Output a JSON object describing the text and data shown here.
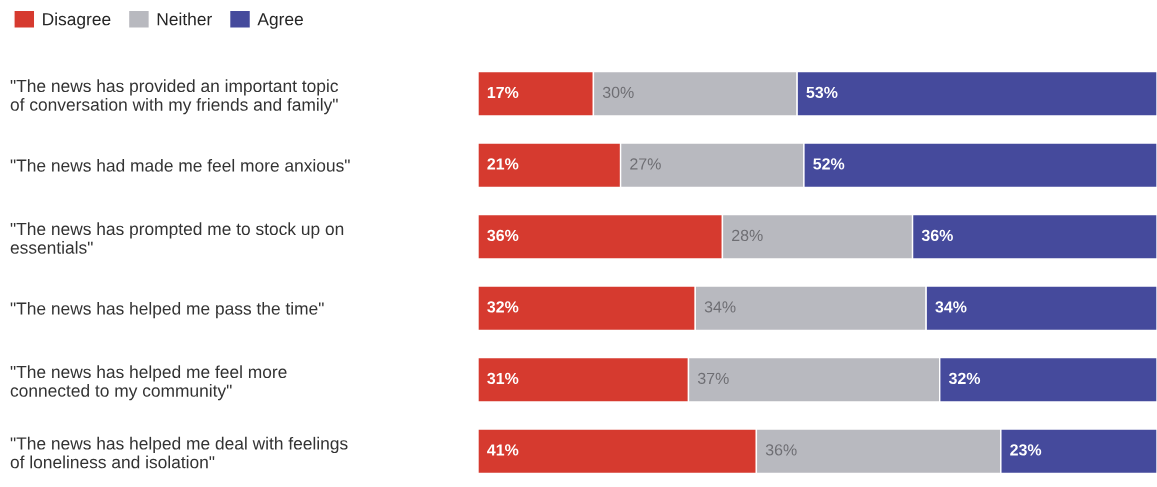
{
  "chart_data": {
    "type": "bar",
    "orientation": "horizontal",
    "stacked": true,
    "tick_labels": "y",
    "legend": "top left",
    "categories": [
      "\"The news has provided an important topic\nof conversation with my friends and family\"",
      "\"The news had made me feel more anxious\"",
      "\"The news has prompted me to stock up on\nessentials\"",
      "\"The news has helped me pass the time\"",
      "\"The news has helped me feel more\nconnected to my community\"",
      "\"The news has helped me deal with feelings\nof loneliness and isolation\""
    ],
    "series": [
      {
        "name": "Disagree",
        "color": "#d63a2f",
        "values": [
          17,
          21,
          36,
          32,
          31,
          41
        ],
        "value_labels": [
          "17%",
          "21%",
          "36%",
          "32%",
          "31%",
          "41%"
        ]
      },
      {
        "name": "Neither",
        "color": "#b8b9bf",
        "values": [
          30,
          27,
          28,
          34,
          37,
          36
        ],
        "value_labels": [
          "30%",
          "27%",
          "28%",
          "34%",
          "37%",
          "36%"
        ]
      },
      {
        "name": "Agree",
        "color": "#454a9c",
        "values": [
          53,
          52,
          36,
          34,
          32,
          23
        ],
        "value_labels": [
          "53%",
          "52%",
          "36%",
          "34%",
          "32%",
          "23%"
        ]
      }
    ]
  }
}
